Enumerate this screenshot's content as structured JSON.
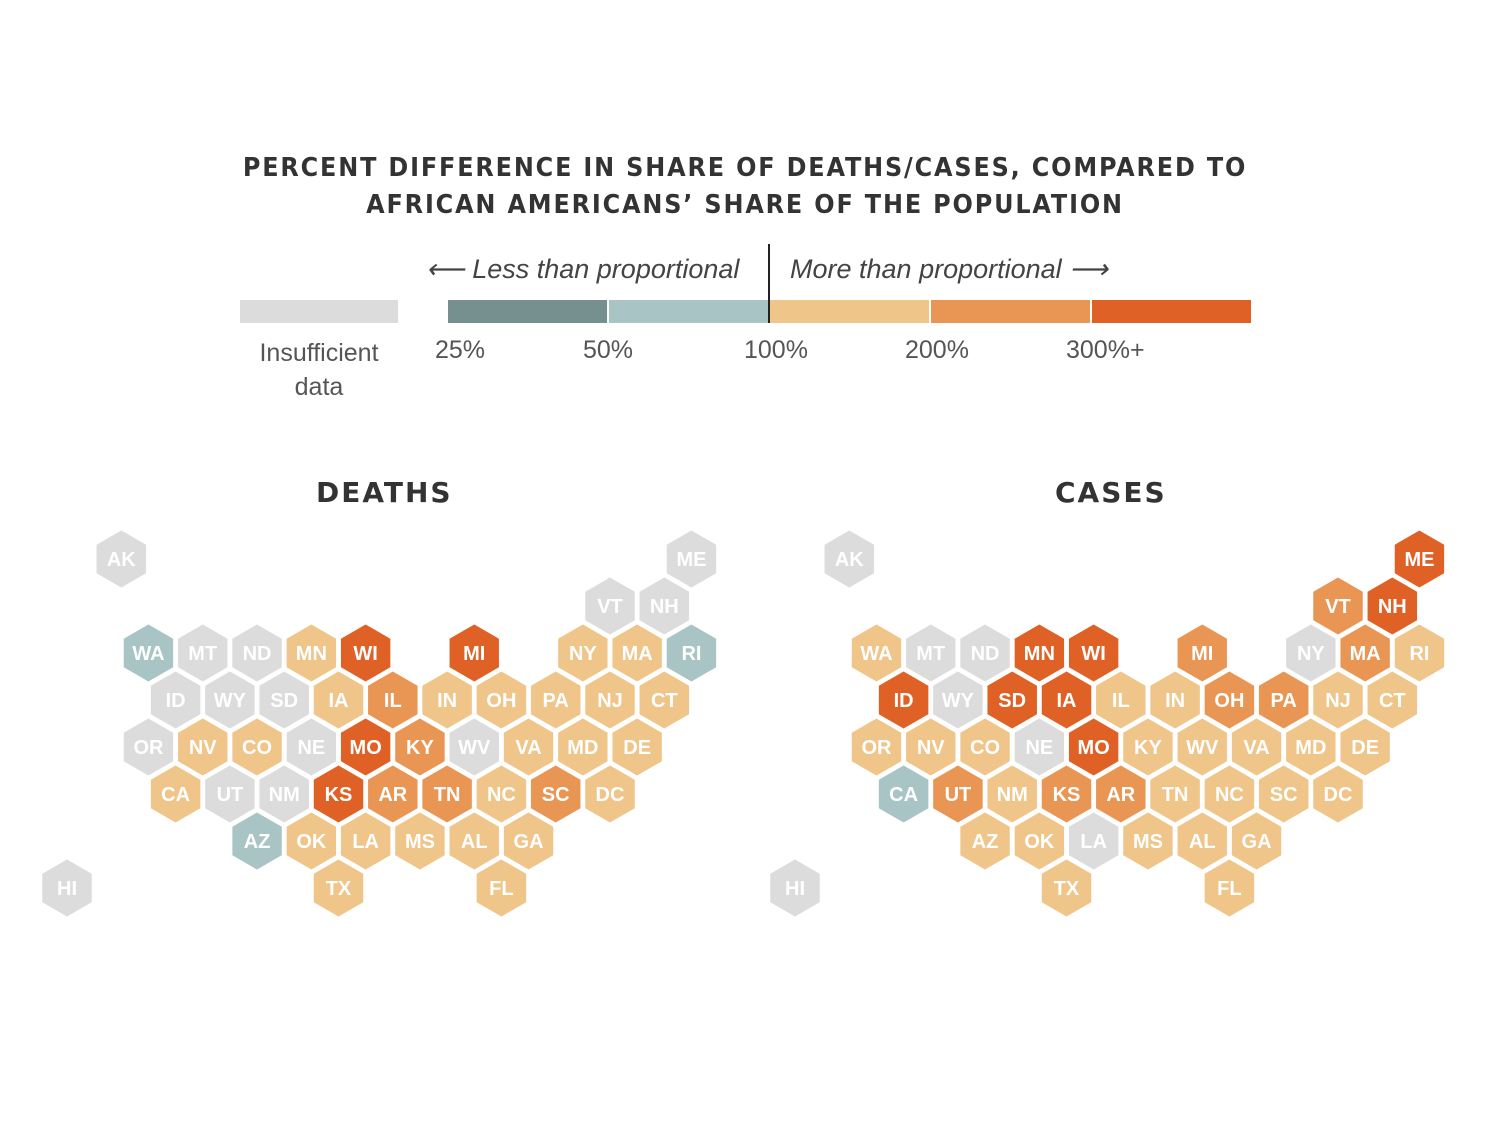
{
  "chart_data": {
    "type": "hex-tile-map",
    "title_lines": [
      "PERCENT DIFFERENCE IN SHARE OF DEATHS/CASES, COMPARED TO",
      "AFRICAN AMERICANS’ SHARE OF THE POPULATION"
    ],
    "legend": {
      "less_label": "⟵ Less than proportional",
      "more_label": "More than proportional ⟶",
      "na_label": "Insufficient data",
      "ticks": [
        "25%",
        "50%",
        "100%",
        "200%",
        "300%+"
      ],
      "bins": [
        {
          "key": "na",
          "color": "#dcdcdc"
        },
        {
          "key": "25-50",
          "color": "#76908f"
        },
        {
          "key": "50-100",
          "color": "#a9c4c4"
        },
        {
          "key": "100-200",
          "color": "#efc589"
        },
        {
          "key": "200-300",
          "color": "#e99654"
        },
        {
          "key": "300+",
          "color": "#e06125"
        }
      ]
    },
    "maps": [
      {
        "title": "DEATHS",
        "states": {
          "AK": "na",
          "ME": "na",
          "VT": "na",
          "NH": "na",
          "WA": "50-100",
          "MT": "na",
          "ND": "na",
          "MN": "100-200",
          "WI": "300+",
          "MI": "300+",
          "NY": "100-200",
          "MA": "100-200",
          "RI": "50-100",
          "ID": "na",
          "WY": "na",
          "SD": "na",
          "IA": "100-200",
          "IL": "200-300",
          "IN": "100-200",
          "OH": "100-200",
          "PA": "100-200",
          "NJ": "100-200",
          "CT": "100-200",
          "OR": "na",
          "NV": "100-200",
          "CO": "100-200",
          "NE": "na",
          "MO": "300+",
          "KY": "200-300",
          "WV": "na",
          "VA": "100-200",
          "MD": "100-200",
          "DE": "100-200",
          "CA": "100-200",
          "UT": "na",
          "NM": "na",
          "KS": "300+",
          "AR": "200-300",
          "TN": "200-300",
          "NC": "100-200",
          "SC": "200-300",
          "DC": "100-200",
          "AZ": "50-100",
          "OK": "100-200",
          "LA": "100-200",
          "MS": "100-200",
          "AL": "100-200",
          "GA": "100-200",
          "HI": "na",
          "TX": "100-200",
          "FL": "100-200"
        }
      },
      {
        "title": "CASES",
        "states": {
          "AK": "na",
          "ME": "300+",
          "VT": "200-300",
          "NH": "300+",
          "WA": "100-200",
          "MT": "na",
          "ND": "na",
          "MN": "300+",
          "WI": "300+",
          "MI": "200-300",
          "NY": "na",
          "MA": "200-300",
          "RI": "100-200",
          "ID": "300+",
          "WY": "na",
          "SD": "300+",
          "IA": "300+",
          "IL": "100-200",
          "IN": "100-200",
          "OH": "200-300",
          "PA": "200-300",
          "NJ": "100-200",
          "CT": "100-200",
          "OR": "100-200",
          "NV": "100-200",
          "CO": "100-200",
          "NE": "na",
          "MO": "300+",
          "KY": "100-200",
          "WV": "100-200",
          "VA": "100-200",
          "MD": "100-200",
          "DE": "100-200",
          "CA": "50-100",
          "UT": "200-300",
          "NM": "100-200",
          "KS": "200-300",
          "AR": "200-300",
          "TN": "100-200",
          "NC": "100-200",
          "SC": "100-200",
          "DC": "100-200",
          "AZ": "100-200",
          "OK": "100-200",
          "LA": "na",
          "MS": "100-200",
          "AL": "100-200",
          "GA": "100-200",
          "HI": "na",
          "TX": "100-200",
          "FL": "100-200"
        }
      }
    ]
  }
}
